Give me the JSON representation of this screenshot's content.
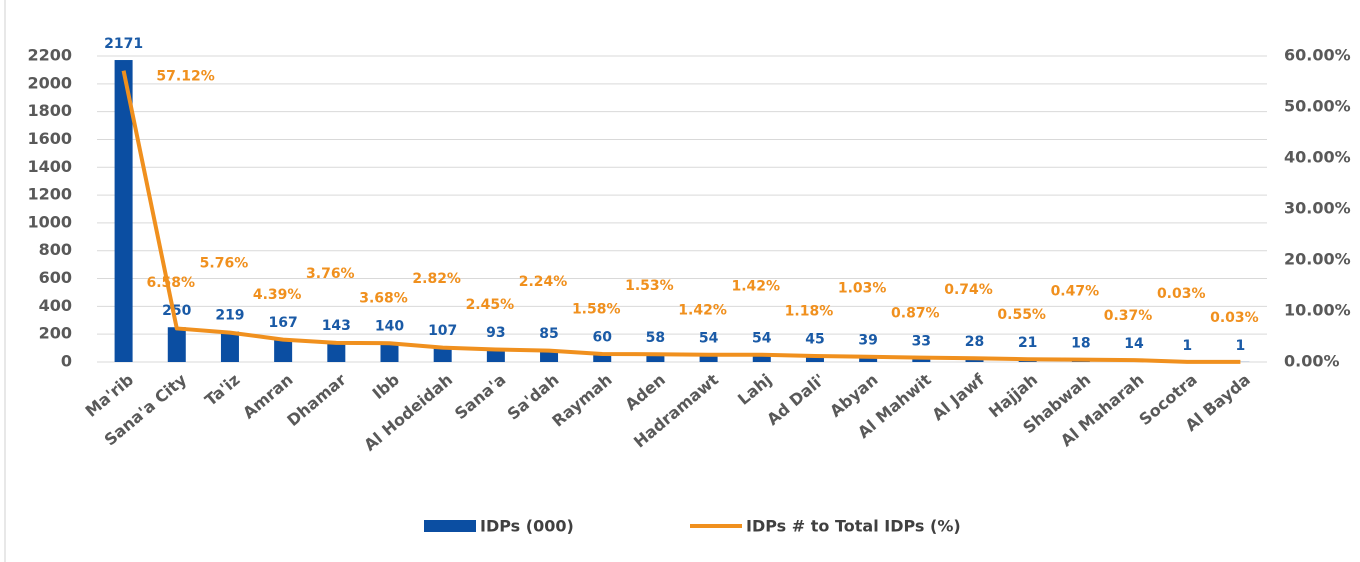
{
  "chart_data": {
    "type": "bar_line",
    "categories": [
      "Ma'rib",
      "Sana'a City",
      "Ta'iz",
      "Amran",
      "Dhamar",
      "Ibb",
      "Al Hodeidah",
      "Sana'a",
      "Sa'dah",
      "Raymah",
      "Aden",
      "Hadramawt",
      "Lahj",
      "Ad Dali'",
      "Abyan",
      "Al Mahwit",
      "Al Jawf",
      "Hajjah",
      "Shabwah",
      "Al Maharah",
      "Socotra",
      "Al Bayda"
    ],
    "series": [
      {
        "name": "IDPs (000)",
        "type": "bar",
        "color": "#0b4ea2",
        "values": [
          2171,
          250,
          219,
          167,
          143,
          140,
          107,
          93,
          85,
          60,
          58,
          54,
          54,
          45,
          39,
          33,
          28,
          21,
          18,
          14,
          1,
          1
        ]
      },
      {
        "name": "IDPs # to Total IDPs (%)",
        "type": "line",
        "axis": "y2",
        "color": "#f0901e",
        "values": [
          57.12,
          6.58,
          5.76,
          4.39,
          3.76,
          3.68,
          2.82,
          2.45,
          2.24,
          1.58,
          1.53,
          1.42,
          1.42,
          1.18,
          1.03,
          0.87,
          0.74,
          0.55,
          0.47,
          0.37,
          0.03,
          0.03
        ],
        "value_labels": [
          "57.12%",
          "6.58%",
          "5.76%",
          "4.39%",
          "3.76%",
          "3.68%",
          "2.82%",
          "2.45%",
          "2.24%",
          "1.58%",
          "1.53%",
          "1.42%",
          "1.42%",
          "1.18%",
          "1.03%",
          "0.87%",
          "0.74%",
          "0.55%",
          "0.47%",
          "0.37%",
          "0.03%",
          "0.03%"
        ]
      }
    ],
    "ylim": [
      0,
      2200
    ],
    "yticks": [
      0,
      200,
      400,
      600,
      800,
      1000,
      1200,
      1400,
      1600,
      1800,
      2000,
      2200
    ],
    "y2lim": [
      0,
      60
    ],
    "y2ticks": [
      {
        "value": 0,
        "label": "0.00%"
      },
      {
        "value": 10,
        "label": "10.00%"
      },
      {
        "value": 20,
        "label": "20.00%"
      },
      {
        "value": 30,
        "label": "30.00%"
      },
      {
        "value": 40,
        "label": "40.00%"
      },
      {
        "value": 50,
        "label": "50.00%"
      },
      {
        "value": 60,
        "label": "60.00%"
      }
    ],
    "grid": true,
    "legend": "bottom"
  }
}
